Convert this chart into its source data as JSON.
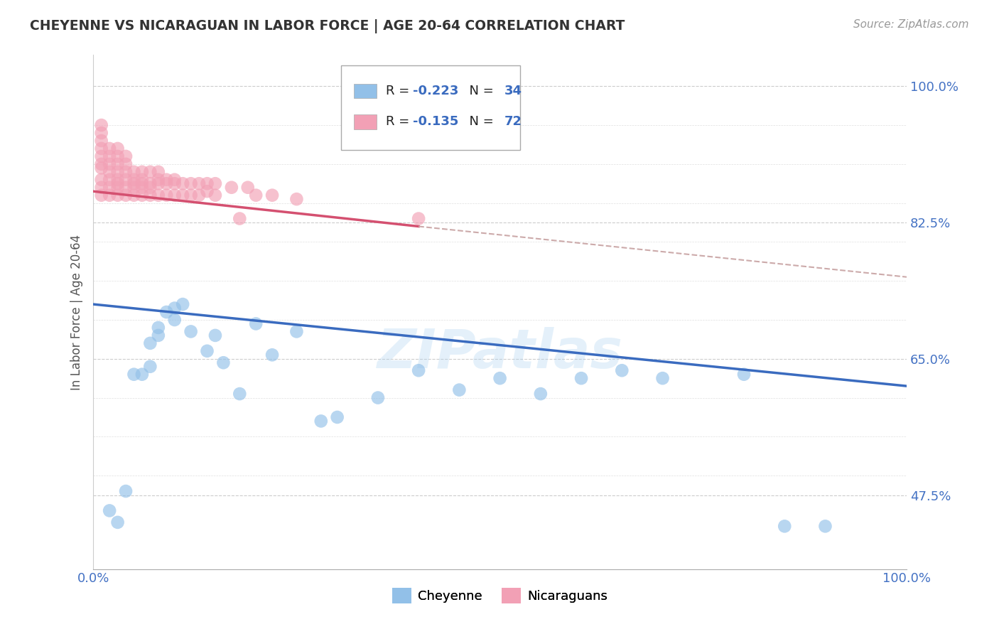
{
  "title": "CHEYENNE VS NICARAGUAN IN LABOR FORCE | AGE 20-64 CORRELATION CHART",
  "source_text": "Source: ZipAtlas.com",
  "ylabel": "In Labor Force | Age 20-64",
  "legend_label_cheyenne": "Cheyenne",
  "legend_label_nicaraguan": "Nicaraguans",
  "color_cheyenne": "#92c0e8",
  "color_nicaraguan": "#f2a0b5",
  "color_trend_cheyenne": "#3a6bbf",
  "color_trend_nicaraguan": "#d45070",
  "color_trend_dashed": "#ccaaaa",
  "background_color": "#ffffff",
  "watermark_text": "ZIPatlas",
  "xlim": [
    0.0,
    1.0
  ],
  "ylim": [
    0.38,
    1.04
  ],
  "cheyenne_x": [
    0.02,
    0.03,
    0.04,
    0.05,
    0.06,
    0.07,
    0.07,
    0.08,
    0.08,
    0.09,
    0.1,
    0.1,
    0.11,
    0.12,
    0.14,
    0.15,
    0.16,
    0.18,
    0.2,
    0.22,
    0.25,
    0.28,
    0.3,
    0.35,
    0.4,
    0.45,
    0.5,
    0.55,
    0.6,
    0.65,
    0.7,
    0.8,
    0.85,
    0.9
  ],
  "cheyenne_y": [
    0.455,
    0.44,
    0.48,
    0.63,
    0.63,
    0.67,
    0.64,
    0.69,
    0.68,
    0.71,
    0.7,
    0.715,
    0.72,
    0.685,
    0.66,
    0.68,
    0.645,
    0.605,
    0.695,
    0.655,
    0.685,
    0.57,
    0.575,
    0.6,
    0.635,
    0.61,
    0.625,
    0.605,
    0.625,
    0.635,
    0.625,
    0.63,
    0.435,
    0.435
  ],
  "nicaraguan_x": [
    0.01,
    0.01,
    0.01,
    0.01,
    0.01,
    0.01,
    0.01,
    0.01,
    0.01,
    0.01,
    0.02,
    0.02,
    0.02,
    0.02,
    0.02,
    0.02,
    0.02,
    0.03,
    0.03,
    0.03,
    0.03,
    0.03,
    0.03,
    0.03,
    0.03,
    0.04,
    0.04,
    0.04,
    0.04,
    0.04,
    0.04,
    0.05,
    0.05,
    0.05,
    0.05,
    0.05,
    0.06,
    0.06,
    0.06,
    0.06,
    0.06,
    0.07,
    0.07,
    0.07,
    0.07,
    0.08,
    0.08,
    0.08,
    0.08,
    0.09,
    0.09,
    0.09,
    0.1,
    0.1,
    0.1,
    0.11,
    0.11,
    0.12,
    0.12,
    0.13,
    0.13,
    0.14,
    0.14,
    0.15,
    0.15,
    0.17,
    0.18,
    0.19,
    0.2,
    0.22,
    0.25,
    0.4
  ],
  "nicaraguan_y": [
    0.86,
    0.87,
    0.88,
    0.895,
    0.9,
    0.91,
    0.92,
    0.93,
    0.94,
    0.95,
    0.86,
    0.87,
    0.88,
    0.89,
    0.9,
    0.91,
    0.92,
    0.86,
    0.87,
    0.875,
    0.88,
    0.89,
    0.9,
    0.91,
    0.92,
    0.86,
    0.87,
    0.88,
    0.89,
    0.9,
    0.91,
    0.86,
    0.87,
    0.875,
    0.88,
    0.89,
    0.86,
    0.87,
    0.875,
    0.88,
    0.89,
    0.86,
    0.87,
    0.875,
    0.89,
    0.86,
    0.875,
    0.88,
    0.89,
    0.86,
    0.875,
    0.88,
    0.86,
    0.875,
    0.88,
    0.86,
    0.875,
    0.86,
    0.875,
    0.86,
    0.875,
    0.865,
    0.875,
    0.86,
    0.875,
    0.87,
    0.83,
    0.87,
    0.86,
    0.86,
    0.855,
    0.83
  ],
  "trend_cheyenne_x0": 0.0,
  "trend_cheyenne_y0": 0.72,
  "trend_cheyenne_x1": 1.0,
  "trend_cheyenne_y1": 0.615,
  "trend_nic_solid_x0": 0.0,
  "trend_nic_solid_y0": 0.865,
  "trend_nic_solid_x1": 0.4,
  "trend_nic_solid_y1": 0.82,
  "trend_nic_dash_x0": 0.4,
  "trend_nic_dash_y0": 0.82,
  "trend_nic_dash_x1": 1.0,
  "trend_nic_dash_y1": 0.755
}
